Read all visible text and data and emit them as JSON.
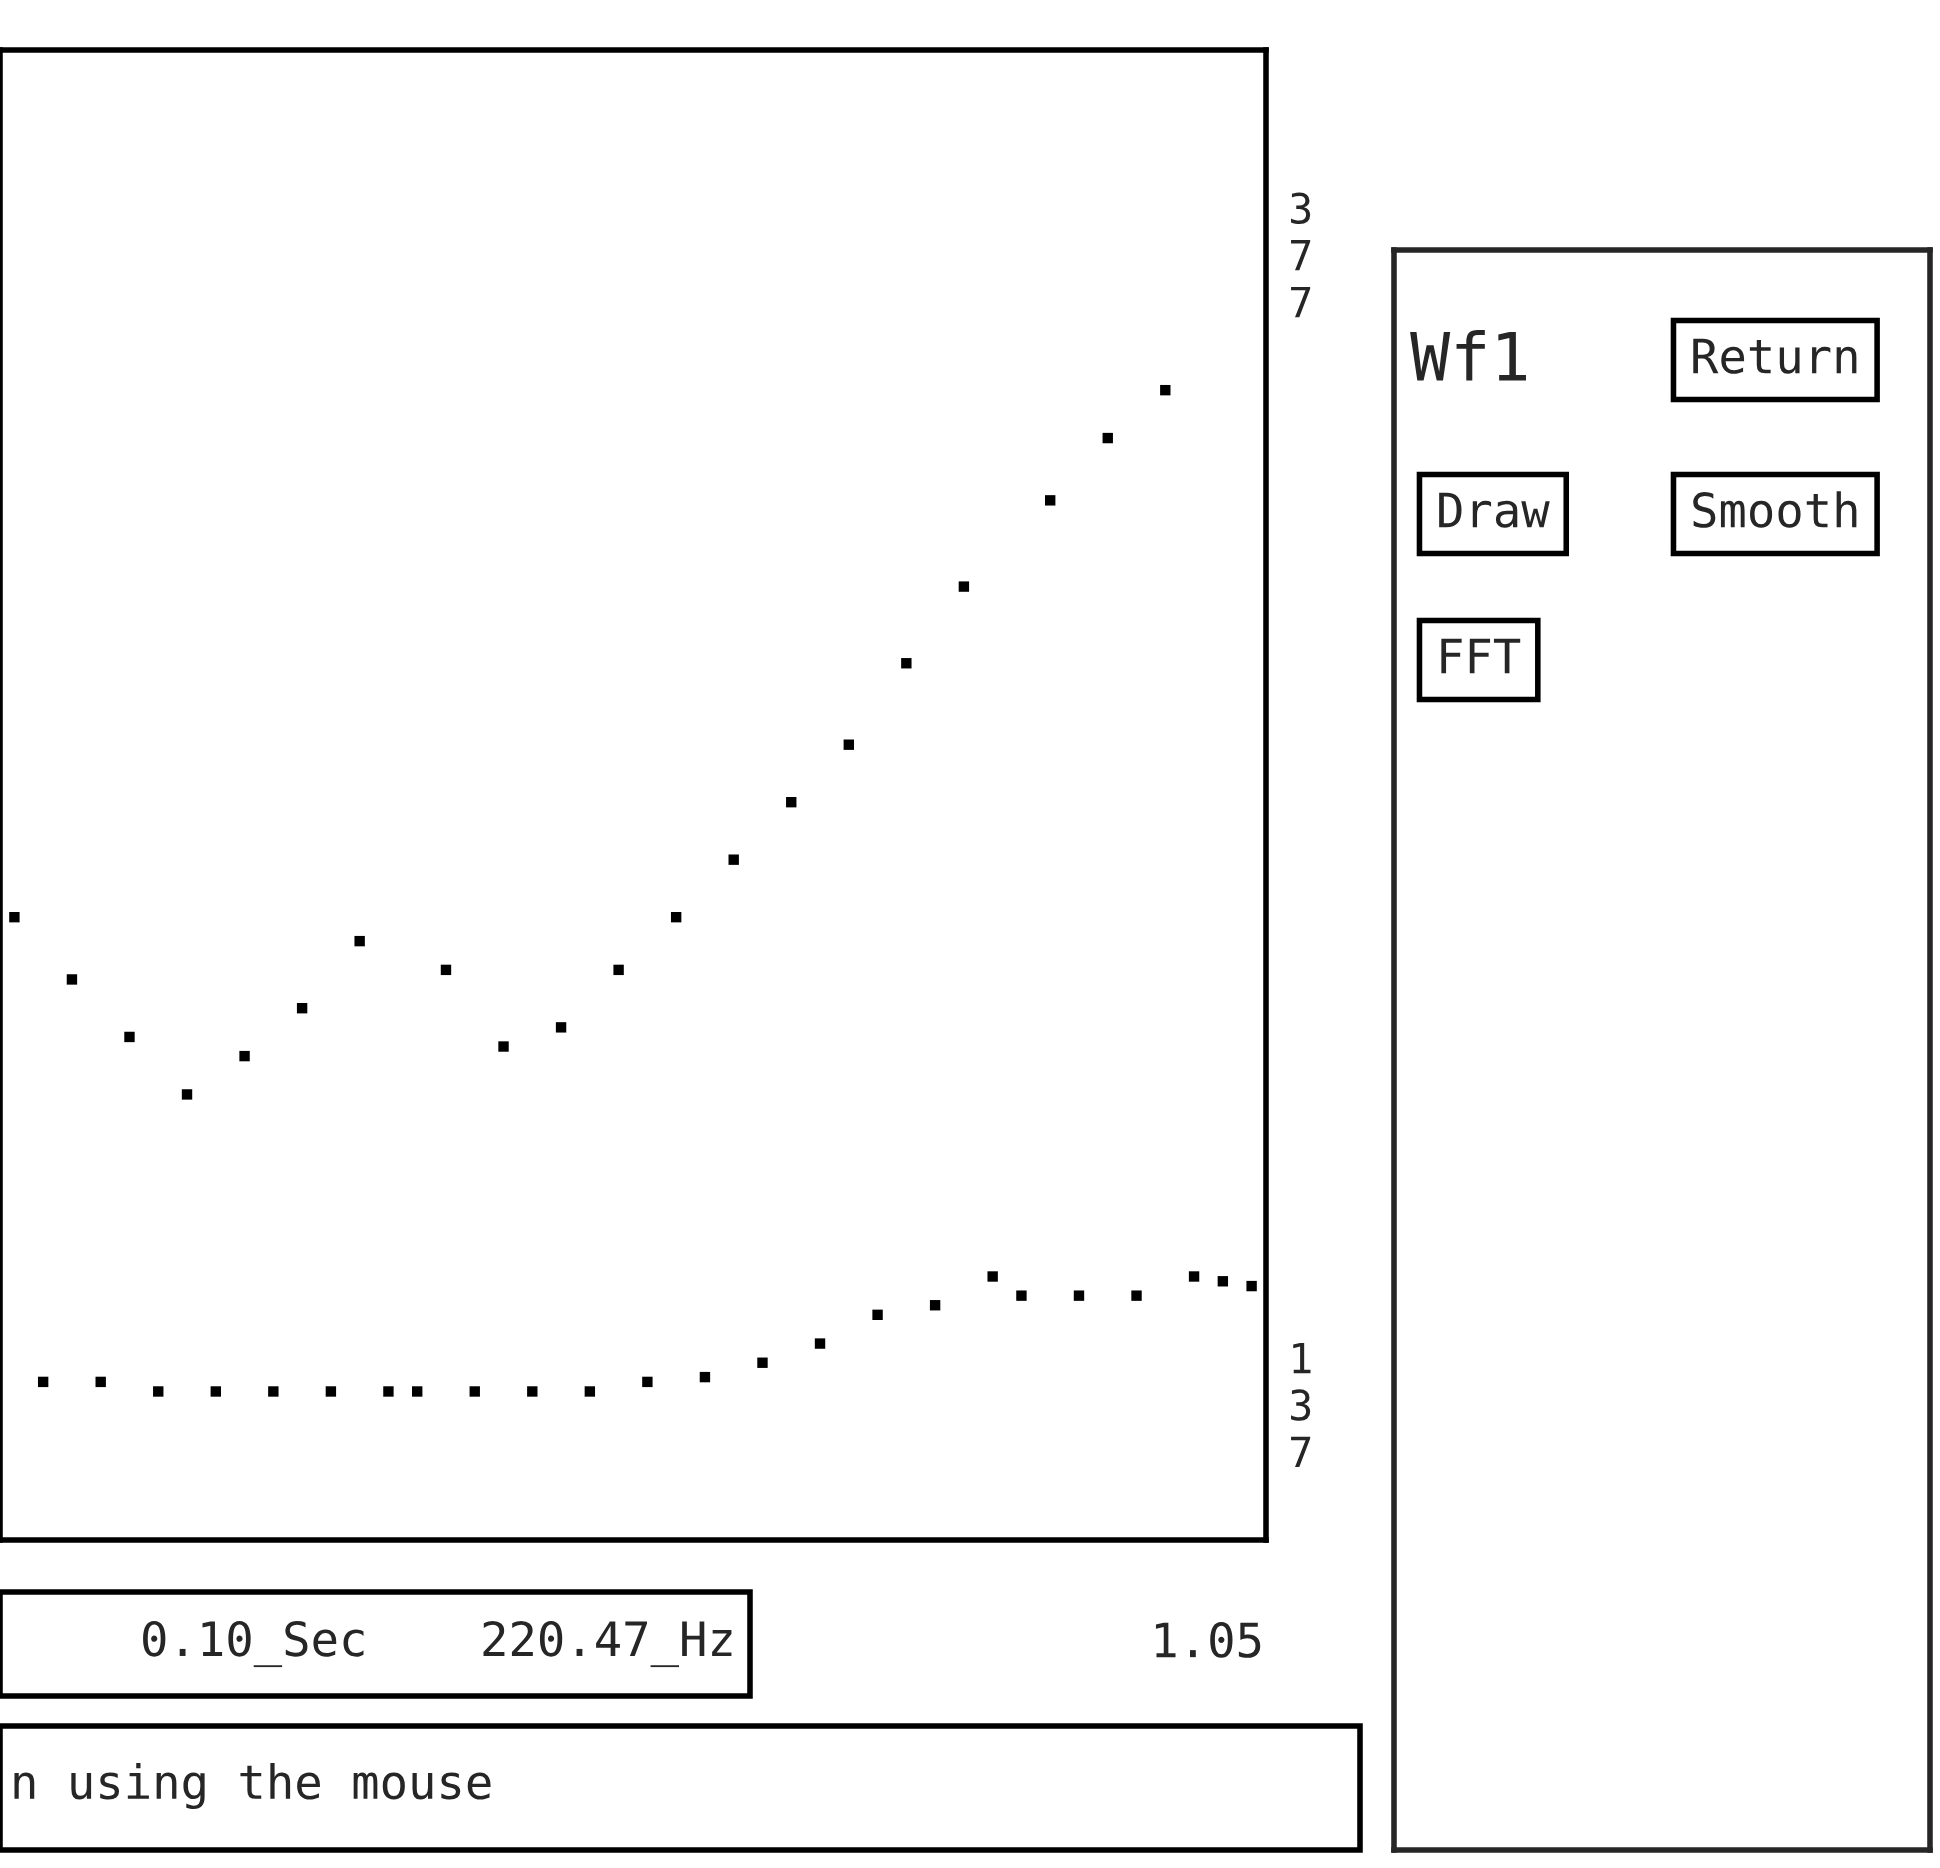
{
  "chart_data": {
    "type": "scatter",
    "title": "Wf1",
    "categories": [
      null,
      null,
      null,
      null,
      null,
      null,
      null,
      null,
      null,
      null,
      null,
      null,
      null,
      null,
      null,
      null,
      null,
      null,
      null,
      null,
      null,
      null,
      null,
      null,
      null,
      null,
      null,
      null,
      null,
      null,
      null,
      null,
      null,
      null,
      null,
      null,
      null,
      null,
      null,
      null,
      null,
      null,
      null,
      null
    ],
    "series": [
      {
        "color": "#000000",
        "values": [
          238,
          null,
          225,
          null,
          213,
          null,
          201,
          null,
          209,
          null,
          219,
          null,
          233,
          null,
          null,
          227,
          null,
          211,
          null,
          215,
          null,
          227,
          null,
          238,
          null,
          250,
          null,
          262,
          null,
          274,
          null,
          291,
          null,
          307,
          null,
          null,
          325,
          null,
          338,
          null,
          348,
          null,
          null,
          null
        ]
      },
      {
        "color": "#000000",
        "values": [
          null,
          141,
          null,
          141,
          null,
          139,
          null,
          139,
          null,
          139,
          null,
          139,
          null,
          139,
          139,
          null,
          139,
          null,
          139,
          null,
          139,
          null,
          141,
          null,
          142,
          null,
          145,
          null,
          149,
          null,
          155,
          null,
          157,
          null,
          163,
          159,
          null,
          159,
          null,
          159,
          null,
          163,
          162,
          161
        ]
      }
    ],
    "ylim": [
      108,
      419
    ],
    "yticks": [
      {
        "value": 377,
        "label": "377"
      },
      {
        "value": 137,
        "label": "137"
      }
    ],
    "marker": "square",
    "grid": false,
    "legend": false,
    "annotations": [
      "0.10_Sec",
      "220.47_Hz",
      "1.05",
      "n using the mouse",
      "Return",
      "Draw",
      "Smooth",
      "FFT"
    ]
  }
}
